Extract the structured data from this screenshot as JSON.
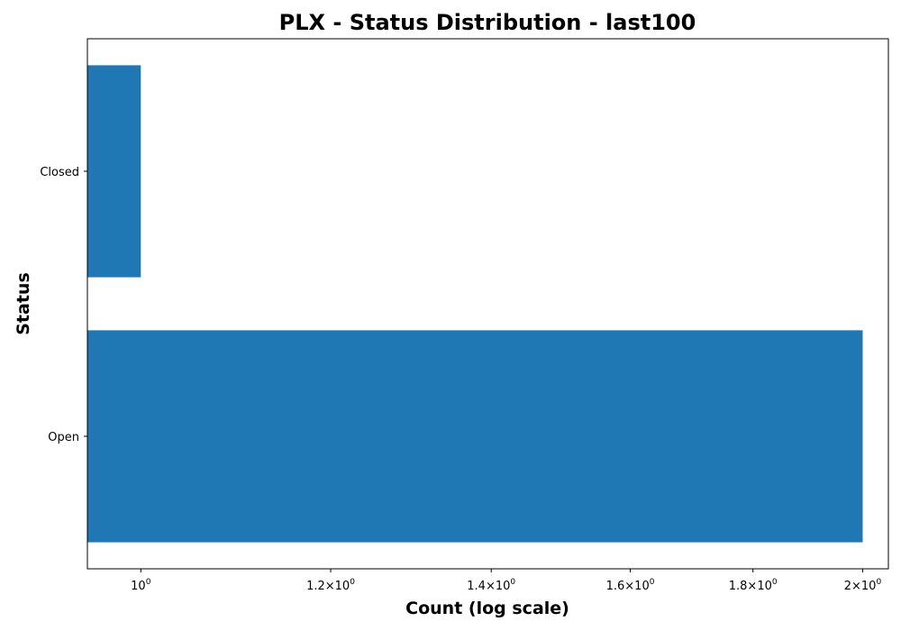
{
  "chart_data": {
    "type": "bar",
    "orientation": "horizontal",
    "title": "PLX - Status Distribution - last100",
    "xlabel": "Count (log scale)",
    "ylabel": "Status",
    "x_scale": "log",
    "xlim": [
      0.95,
      2.05
    ],
    "categories": [
      "Closed",
      "Open"
    ],
    "values": [
      1,
      2
    ],
    "xticks": [
      {
        "value": 1.0,
        "mantissa": "",
        "exponent": "0"
      },
      {
        "value": 1.2,
        "mantissa": "1.2",
        "exponent": "0"
      },
      {
        "value": 1.4,
        "mantissa": "1.4",
        "exponent": "0"
      },
      {
        "value": 1.6,
        "mantissa": "1.6",
        "exponent": "0"
      },
      {
        "value": 1.8,
        "mantissa": "1.8",
        "exponent": "0"
      },
      {
        "value": 2.0,
        "mantissa": "2",
        "exponent": "0"
      }
    ],
    "bar_color": "#1f77b4",
    "grid": false,
    "legend": "none"
  }
}
